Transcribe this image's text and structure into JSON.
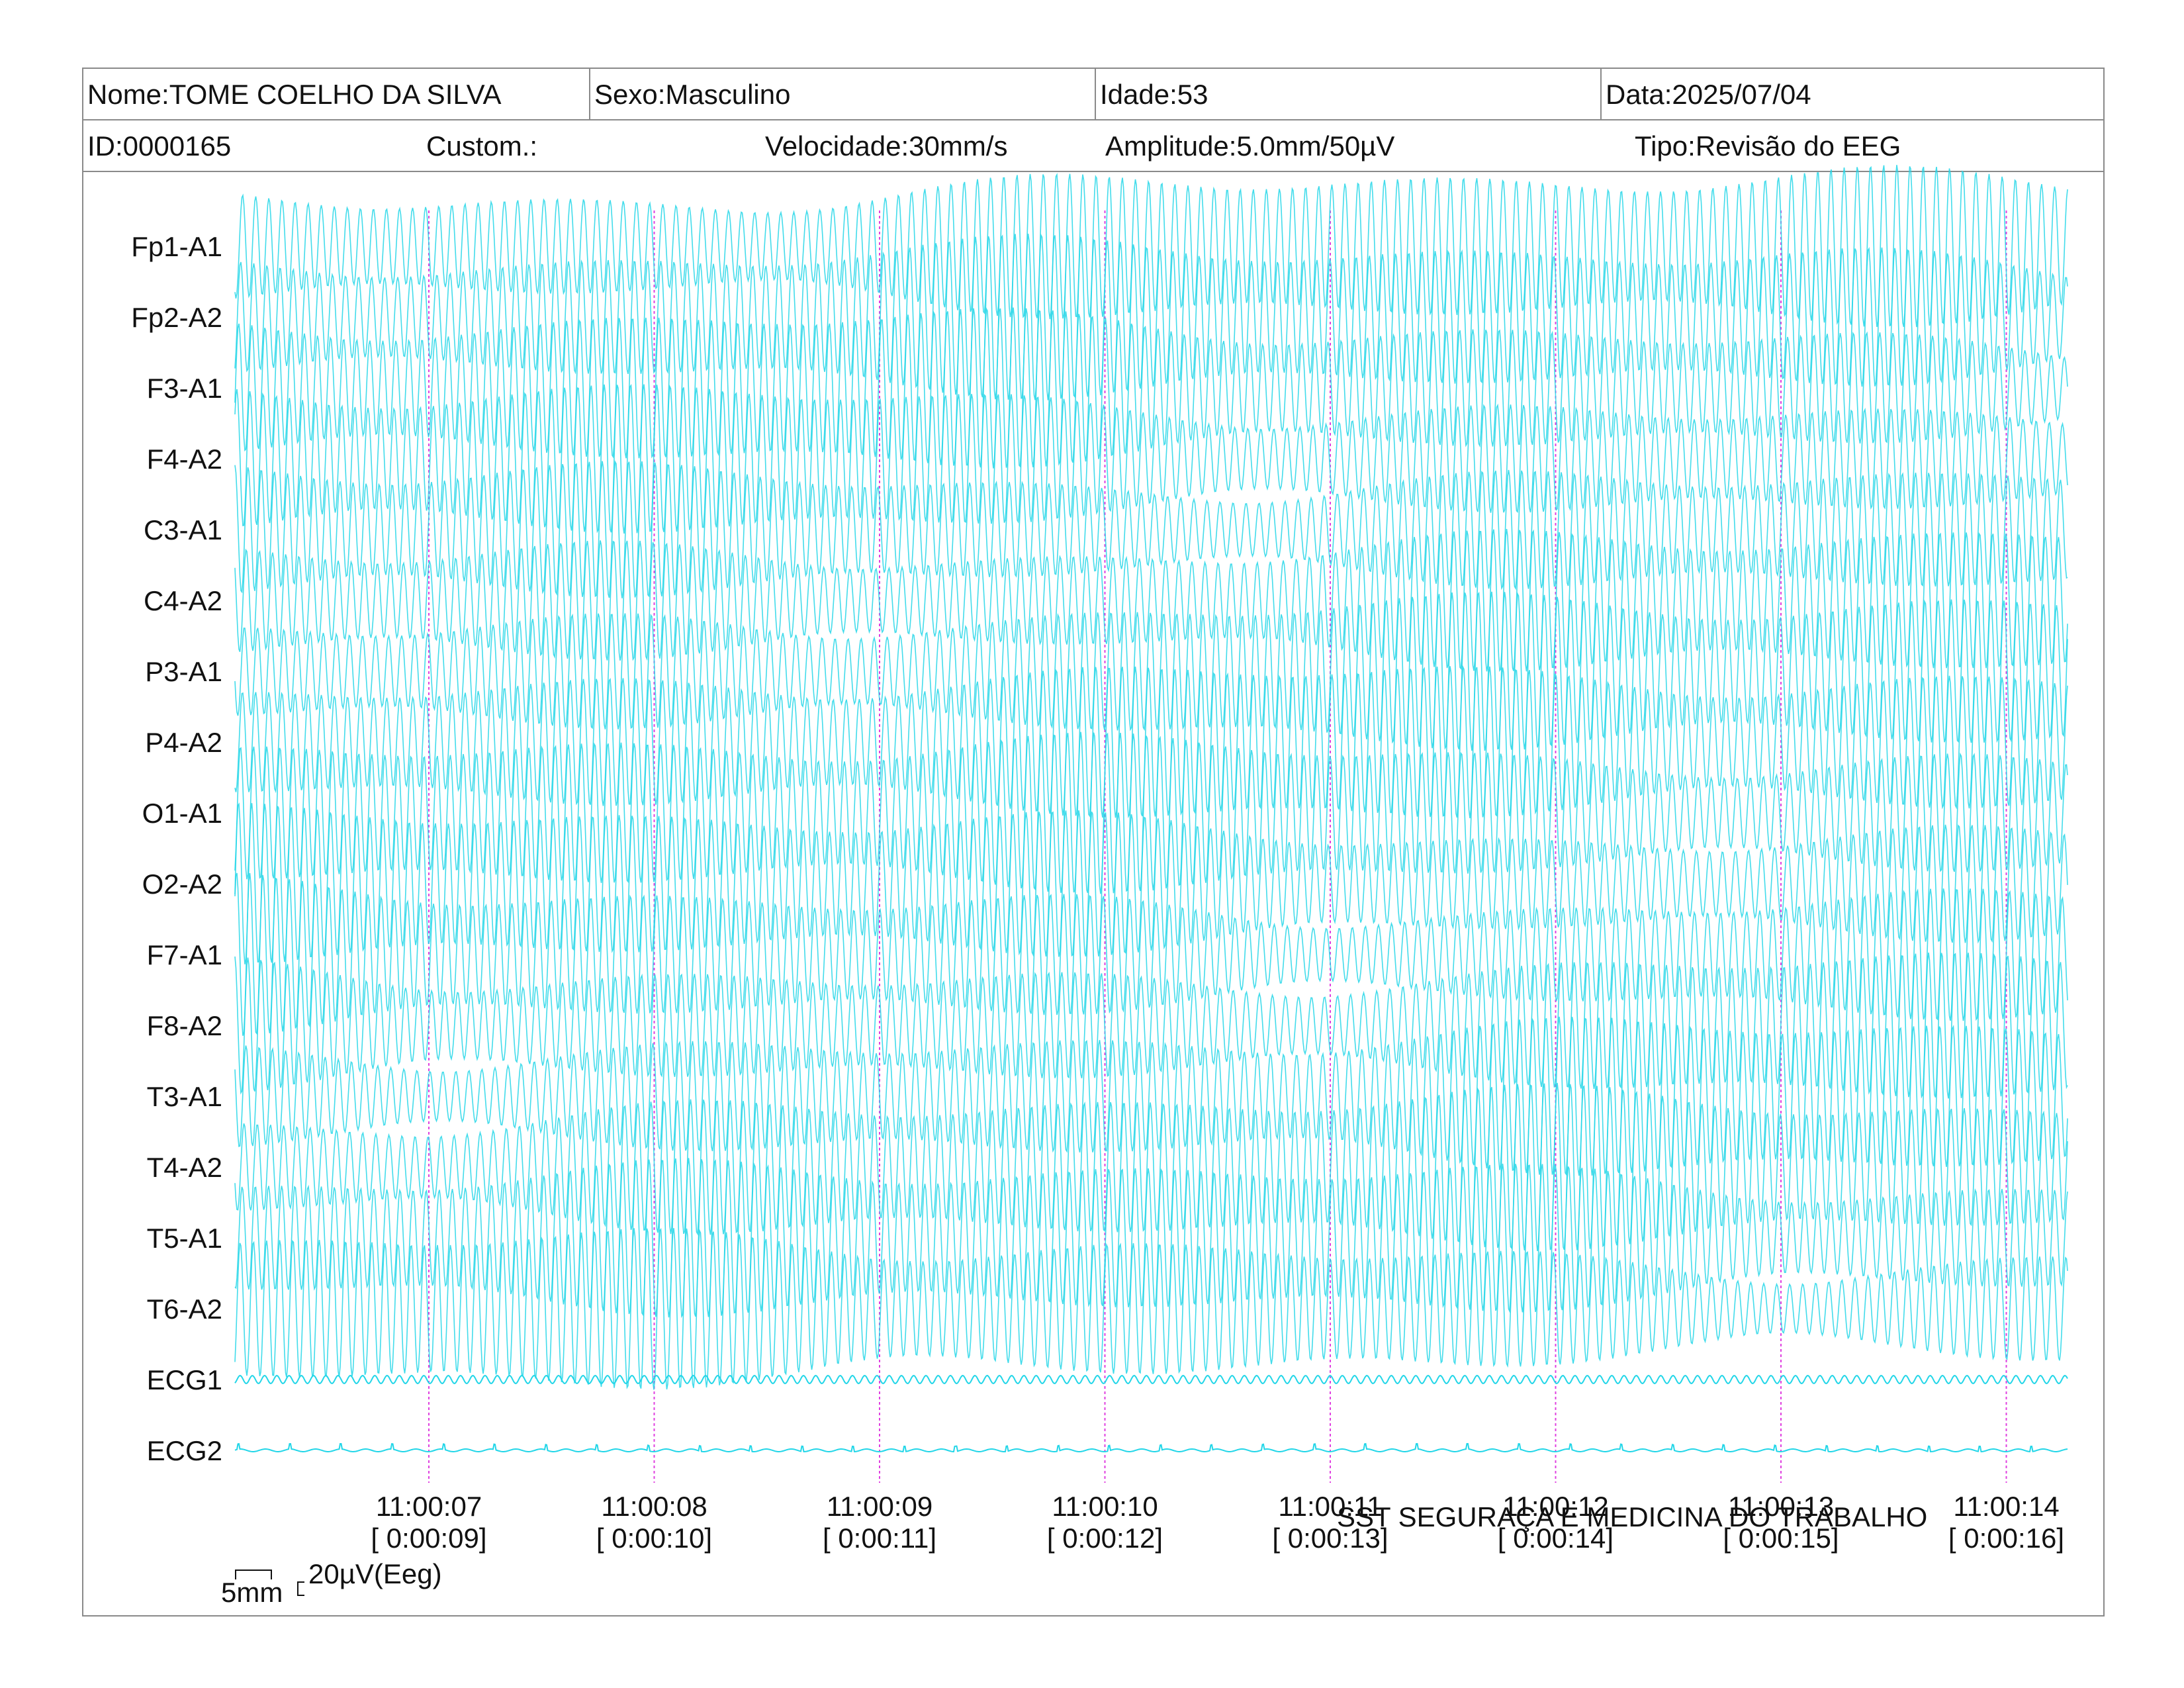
{
  "header": {
    "nome": "Nome:TOME COELHO DA SILVA",
    "sexo": "Sexo:Masculino",
    "idade": "Idade:53",
    "data": "Data:2025/07/04",
    "id": "ID:0000165",
    "custom": "Custom.:",
    "velocidade": "Velocidade:30mm/s",
    "amplitude": "Amplitude:5.0mm/50µV",
    "tipo": "Tipo:Revisão do EEG"
  },
  "footer": {
    "company": "SST SEGURAÇA E MEDICINA DO TRABALHO",
    "scale_mm": "5mm",
    "scale_uv": "20µV(Eeg)"
  },
  "colors": {
    "trace": "#22d6e8",
    "marker": "#e040e0",
    "border": "#8a8a8a"
  },
  "chart_data": {
    "type": "line",
    "channels": [
      "Fp1-A1",
      "Fp2-A2",
      "F3-A1",
      "F4-A2",
      "C3-A1",
      "C4-A2",
      "P3-A1",
      "P4-A2",
      "O1-A1",
      "O2-A2",
      "F7-A1",
      "F8-A2",
      "T3-A1",
      "T4-A2",
      "T5-A1",
      "T6-A2",
      "ECG1",
      "ECG2"
    ],
    "time_markers": [
      {
        "time": "11:00:07",
        "elapsed": "[ 0:00:09]"
      },
      {
        "time": "11:00:08",
        "elapsed": "[ 0:00:10]"
      },
      {
        "time": "11:00:09",
        "elapsed": "[ 0:00:11]"
      },
      {
        "time": "11:00:10",
        "elapsed": "[ 0:00:12]"
      },
      {
        "time": "11:00:11",
        "elapsed": "[ 0:00:13]"
      },
      {
        "time": "11:00:12",
        "elapsed": "[ 0:00:14]"
      },
      {
        "time": "11:00:13",
        "elapsed": "[ 0:00:15]"
      },
      {
        "time": "11:00:14",
        "elapsed": "[ 0:00:16]"
      }
    ],
    "x_range_seconds": [
      8.17,
      16.28
    ],
    "eeg_dominant_frequency_hz": 12,
    "ecg1_frequency_hz": 8,
    "grid": false
  }
}
